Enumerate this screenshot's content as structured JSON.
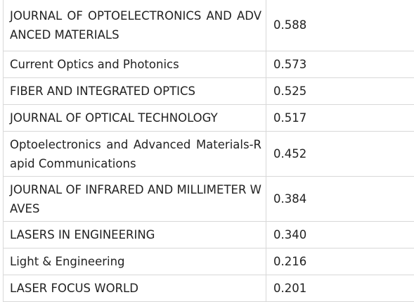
{
  "table": {
    "rows": [
      {
        "name": "JOURNAL  OF OPTOELECTRONICS AND ADVANCED MATERIALS",
        "score": "0.588"
      },
      {
        "name": "Current  Optics and Photonics",
        "score": "0.573"
      },
      {
        "name": "FIBER  AND INTEGRATED OPTICS",
        "score": "0.525"
      },
      {
        "name": "JOURNAL  OF OPTICAL TECHNOLOGY",
        "score": "0.517"
      },
      {
        "name": "Optoelectronics  and Advanced Materials-Rapid Communications",
        "score": "0.452"
      },
      {
        "name": "JOURNAL  OF INFRARED AND MILLIMETER WAVES",
        "score": "0.384"
      },
      {
        "name": "LASERS  IN ENGINEERING",
        "score": "0.340"
      },
      {
        "name": "Light  & Engineering",
        "score": "0.216"
      },
      {
        "name": "LASER  FOCUS WORLD",
        "score": "0.201"
      }
    ]
  }
}
